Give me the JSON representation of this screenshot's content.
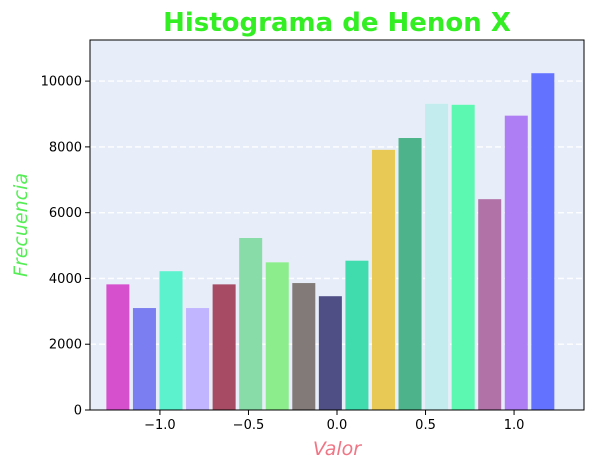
{
  "chart_data": {
    "type": "bar",
    "title": "Histograma de Henon X",
    "xlabel": "Valor",
    "ylabel": "Frecuencia",
    "xlim": [
      -1.395,
      1.395
    ],
    "ylim": [
      0,
      11250
    ],
    "grid": {
      "axis": "y",
      "style": "dashed"
    },
    "bin_width": 0.15,
    "bar_width": 0.13,
    "x": [
      -1.2375,
      -1.0875,
      -0.9375,
      -0.7875,
      -0.6375,
      -0.4875,
      -0.3375,
      -0.1875,
      -0.0375,
      0.1125,
      0.2625,
      0.4125,
      0.5625,
      0.7125,
      0.8625,
      1.0125,
      1.1625
    ],
    "values": [
      3820,
      3100,
      4220,
      3100,
      3820,
      5230,
      4490,
      3860,
      3460,
      4540,
      7910,
      8270,
      9310,
      9280,
      6410,
      8950,
      10240
    ],
    "colors": [
      "#d64fcc",
      "#7a7ef0",
      "#5cf2cd",
      "#c1b5ff",
      "#a64b63",
      "#88dca7",
      "#8ced8c",
      "#817a78",
      "#4f4f86",
      "#40dcae",
      "#e8c955",
      "#4db38a",
      "#c3ecee",
      "#5cf7b0",
      "#b172a7",
      "#ae7ff4",
      "#6372ff"
    ],
    "xticks": [
      {
        "value": -1.0,
        "label": "−1.0"
      },
      {
        "value": -0.5,
        "label": "−0.5"
      },
      {
        "value": 0.0,
        "label": "0.0"
      },
      {
        "value": 0.5,
        "label": "0.5"
      },
      {
        "value": 1.0,
        "label": "1.0"
      }
    ],
    "yticks": [
      {
        "value": 0,
        "label": "0"
      },
      {
        "value": 2000,
        "label": "2000"
      },
      {
        "value": 4000,
        "label": "4000"
      },
      {
        "value": 6000,
        "label": "6000"
      },
      {
        "value": 8000,
        "label": "8000"
      },
      {
        "value": 10000,
        "label": "10000"
      }
    ],
    "style": {
      "title_color": "#33ee22",
      "xlabel_color": "#f07585",
      "ylabel_color": "#55ee55",
      "background_color": "#e8eef9"
    }
  }
}
